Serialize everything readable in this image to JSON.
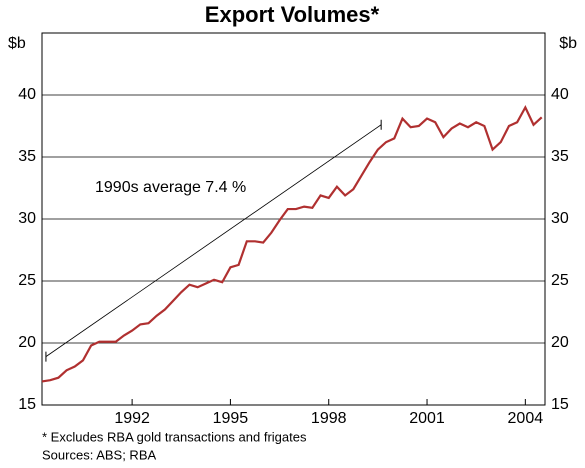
{
  "chart_data": {
    "type": "line",
    "title": "Export Volumes*",
    "y_axis_label": "$b",
    "y2_axis_label": "$b",
    "x": [
      1989.25,
      1989.5,
      1989.75,
      1990,
      1990.25,
      1990.5,
      1990.75,
      1991,
      1991.25,
      1991.5,
      1991.75,
      1992,
      1992.25,
      1992.5,
      1992.75,
      1993,
      1993.25,
      1993.5,
      1993.75,
      1994,
      1994.25,
      1994.5,
      1994.75,
      1995,
      1995.25,
      1995.5,
      1995.75,
      1996,
      1996.25,
      1996.5,
      1996.75,
      1997,
      1997.25,
      1997.5,
      1997.75,
      1998,
      1998.25,
      1998.5,
      1998.75,
      1999,
      1999.25,
      1999.5,
      1999.75,
      2000,
      2000.25,
      2000.5,
      2000.75,
      2001,
      2001.25,
      2001.5,
      2001.75,
      2002,
      2002.25,
      2002.5,
      2002.75,
      2003,
      2003.25,
      2003.5,
      2003.75,
      2004,
      2004.25,
      2004.5
    ],
    "series": [
      {
        "name": "Export volumes",
        "color": "#b03030",
        "values": [
          16.9,
          17.0,
          17.2,
          17.8,
          18.1,
          18.6,
          19.8,
          20.1,
          20.1,
          20.1,
          20.6,
          21.0,
          21.5,
          21.6,
          22.2,
          22.7,
          23.4,
          24.1,
          24.7,
          24.5,
          24.8,
          25.1,
          24.9,
          26.1,
          26.3,
          28.2,
          28.2,
          28.1,
          28.9,
          29.9,
          30.8,
          30.8,
          31.0,
          30.9,
          31.9,
          31.7,
          32.6,
          31.9,
          32.4,
          33.5,
          34.6,
          35.6,
          36.2,
          36.5,
          38.1,
          37.4,
          37.5,
          38.1,
          37.8,
          36.6,
          37.3,
          37.7,
          37.4,
          37.8,
          37.5,
          35.6,
          36.2,
          37.5,
          37.8,
          39.0,
          37.6,
          38.2
        ]
      }
    ],
    "trend": {
      "x": [
        1989.37,
        1999.6
      ],
      "values": [
        18.9,
        37.6
      ],
      "color": "#000000"
    },
    "annotation": "1990s average 7.4 %",
    "xlim": [
      1989.25,
      2004.6
    ],
    "xticks": [
      1992,
      1995,
      1998,
      2001,
      2004
    ],
    "ylim": [
      15,
      45
    ],
    "yticks": [
      15,
      20,
      25,
      30,
      35,
      40
    ],
    "grid": true,
    "footnote": "*   Excludes RBA gold transactions and frigates",
    "sources": "Sources: ABS; RBA"
  }
}
